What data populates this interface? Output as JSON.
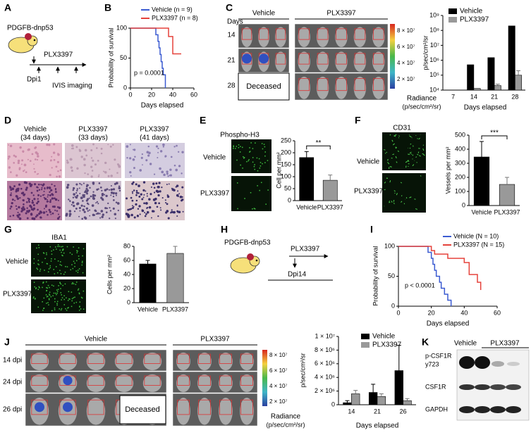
{
  "figure": {
    "letters": [
      "A",
      "B",
      "C",
      "D",
      "E",
      "F",
      "G",
      "H",
      "I",
      "J",
      "K"
    ],
    "a": {
      "model": "PDGFB-dnp53",
      "drug": "PLX3397",
      "start": "Dpi1",
      "imaging": "IVIS imaging"
    },
    "c": {
      "groups": [
        "Vehicle",
        "PLX3397"
      ],
      "days": "Days",
      "rows": [
        "14",
        "21",
        "28"
      ],
      "deceased": "Deceased",
      "scale": [
        "8 × 10⁷",
        "6 × 10⁷",
        "4 × 10⁷",
        "2 × 10⁷"
      ],
      "radiance": "Radiance",
      "unit": "(p/sec/cm²/sr)"
    },
    "d": {
      "labels": [
        [
          "Vehicle",
          "(34 days)"
        ],
        [
          "PLX3397",
          "(33 days)"
        ],
        [
          "PLX3397",
          "(41 days)"
        ]
      ]
    },
    "e": {
      "rows": [
        "Vehicle",
        "PLX3397"
      ]
    },
    "f": {
      "rows": [
        "Vehicle",
        "PLX3397"
      ]
    },
    "g": {
      "rows": [
        "Vehicle",
        "PLX3397"
      ]
    },
    "h": {
      "model": "PDGFB-dnp53",
      "drug": "PLX3397",
      "start": "Dpi14"
    },
    "j": {
      "groups": [
        "Vehicle",
        "PLX3397"
      ],
      "rows": [
        "14 dpi",
        "24 dpi",
        "26 dpi"
      ],
      "deceased": "Deceased",
      "scale": [
        "8 × 10⁷",
        "6 × 10⁷",
        "4 × 10⁷",
        "2 × 10⁷"
      ],
      "radiance": "Radiance",
      "unit": "(p/sec/cm²/sr)"
    },
    "k": {
      "groups": [
        "Vehicle",
        "PLX3397"
      ],
      "rows": [
        "p-CSF1R",
        "y723",
        "CSF1R",
        "GAPDH"
      ]
    }
  },
  "chart_data": [
    {
      "type": "line",
      "xlabel": "Days elapsed",
      "ylabel": "Probability of survival",
      "annotation": "p = 0.0001",
      "xlim": [
        0,
        60
      ],
      "xticks": [
        0,
        20,
        40,
        60
      ],
      "ylim": [
        0,
        100
      ],
      "yticks": [
        0,
        50,
        100
      ],
      "series": [
        {
          "name": "Vehicle (n = 9)",
          "color": "#3b5bd1",
          "x": [
            0,
            24,
            26,
            27,
            28,
            29,
            30,
            31,
            33
          ],
          "values": [
            100,
            89,
            78,
            67,
            56,
            44,
            33,
            22,
            0
          ]
        },
        {
          "name": "PLX3397 (n = 8)",
          "color": "#e5423b",
          "x": [
            0,
            36,
            40,
            48
          ],
          "values": [
            100,
            86,
            57,
            57
          ]
        }
      ]
    },
    {
      "type": "bar",
      "log": true,
      "xlabel": "Days elapsed",
      "ylabel": "p/sec/cm²/sr",
      "categories": [
        "7",
        "14",
        "21",
        "28"
      ],
      "ylim": [
        10000,
        1000000000
      ],
      "yticks": [
        {
          "value": 10000,
          "label": "10⁴"
        },
        {
          "value": 100000,
          "label": "10⁵"
        },
        {
          "value": 1000000,
          "label": "10⁶"
        },
        {
          "value": 10000000,
          "label": "10⁷"
        },
        {
          "value": 100000000,
          "label": "10⁸"
        },
        {
          "value": 1000000000,
          "label": "10⁹"
        }
      ],
      "series": [
        {
          "name": "Vehicle",
          "color": "#000000",
          "values": [
            null,
            500000,
            1500000,
            200000000
          ]
        },
        {
          "name": "PLX3397",
          "color": "#999999",
          "values": [
            null,
            13000,
            20000,
            100000
          ],
          "errors": [
            null,
            null,
            5000,
            100000
          ]
        }
      ]
    },
    {
      "type": "bar",
      "title": "Phospho-H3",
      "ylabel": "Cell per mm²",
      "categories": [
        "Vehicle",
        "PLX3397"
      ],
      "values": [
        180,
        85
      ],
      "errors": [
        25,
        22
      ],
      "colors": [
        "#000000",
        "#999999"
      ],
      "annotation": "**",
      "ylim": [
        0,
        250
      ],
      "yticks": [
        0,
        50,
        100,
        150,
        200,
        250
      ]
    },
    {
      "type": "bar",
      "title": "CD31",
      "ylabel": "Vessels per mm²",
      "categories": [
        "Vehicle",
        "PLX3397"
      ],
      "values": [
        345,
        150
      ],
      "errors": [
        110,
        50
      ],
      "colors": [
        "#000000",
        "#999999"
      ],
      "annotation": "***",
      "ylim": [
        0,
        500
      ],
      "yticks": [
        0,
        100,
        200,
        300,
        400,
        500
      ]
    },
    {
      "type": "bar",
      "title": "IBA1",
      "ylabel": "Cells per mm²",
      "categories": [
        "Vehicle",
        "PLX3397"
      ],
      "values": [
        55,
        70
      ],
      "errors": [
        5,
        10
      ],
      "colors": [
        "#000000",
        "#999999"
      ],
      "ylim": [
        0,
        80
      ],
      "yticks": [
        0,
        20,
        40,
        60,
        80
      ]
    },
    {
      "type": "line",
      "xlabel": "Days elapsed",
      "ylabel": "Probability of survival",
      "annotation": "p < 0.0001",
      "xlim": [
        0,
        60
      ],
      "xticks": [
        0,
        20,
        40,
        60
      ],
      "ylim": [
        0,
        100
      ],
      "yticks": [
        0,
        50,
        100
      ],
      "series": [
        {
          "name": "Vehicle (N = 10)",
          "color": "#3b5bd1",
          "x": [
            0,
            18,
            20,
            21,
            22,
            23,
            25,
            26,
            28,
            30,
            32
          ],
          "values": [
            100,
            90,
            80,
            70,
            60,
            50,
            40,
            30,
            20,
            10,
            0
          ]
        },
        {
          "name": "PLX3397 (N = 15)",
          "color": "#e5423b",
          "x": [
            0,
            20,
            22,
            30,
            40,
            43,
            48,
            50
          ],
          "values": [
            100,
            93,
            87,
            80,
            73,
            53,
            40,
            27
          ]
        }
      ]
    },
    {
      "type": "bar",
      "xlabel": "Days elapsed",
      "ylabel": "p/sec/cm²/sr",
      "categories": [
        "14",
        "21",
        "26"
      ],
      "ylim": [
        0,
        10000000
      ],
      "yticks": [
        0,
        {
          "value": 2000000,
          "label": "2 × 10⁶"
        },
        {
          "value": 4000000,
          "label": "4 × 10⁶"
        },
        {
          "value": 6000000,
          "label": "6 × 10⁶"
        },
        {
          "value": 8000000,
          "label": "8 × 10⁶"
        },
        {
          "value": 10000000,
          "label": "1 × 10⁷"
        }
      ],
      "series": [
        {
          "name": "Vehicle",
          "color": "#000000",
          "values": [
            300000,
            1800000,
            5000000
          ],
          "errors": [
            300000,
            1200000,
            3700000
          ]
        },
        {
          "name": "PLX3397",
          "color": "#999999",
          "values": [
            1600000,
            1200000,
            600000
          ],
          "errors": [
            500000,
            400000,
            300000
          ]
        }
      ]
    }
  ]
}
